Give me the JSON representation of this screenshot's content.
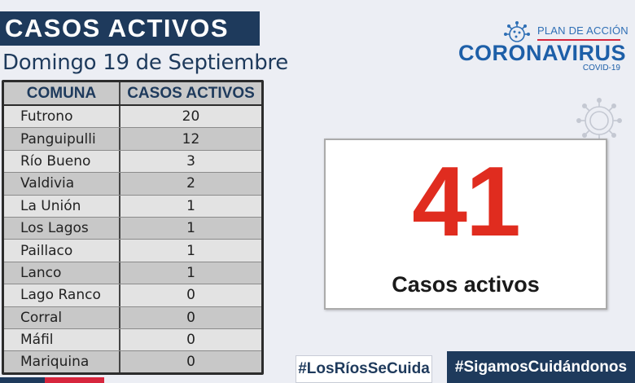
{
  "header": {
    "title": "CASOS ACTIVOS",
    "date": "Domingo 19 de Septiembre"
  },
  "table": {
    "col_comuna": "COMUNA",
    "col_casos": "CASOS ACTIVOS",
    "rows": [
      {
        "comuna": "Futrono",
        "casos": "20"
      },
      {
        "comuna": "Panguipulli",
        "casos": "12"
      },
      {
        "comuna": "Río Bueno",
        "casos": "3"
      },
      {
        "comuna": "Valdivia",
        "casos": "2"
      },
      {
        "comuna": "La Unión",
        "casos": "1"
      },
      {
        "comuna": "Los Lagos",
        "casos": "1"
      },
      {
        "comuna": "Paillaco",
        "casos": "1"
      },
      {
        "comuna": "Lanco",
        "casos": "1"
      },
      {
        "comuna": "Lago Ranco",
        "casos": "0"
      },
      {
        "comuna": "Corral",
        "casos": "0"
      },
      {
        "comuna": "Máfil",
        "casos": "0"
      },
      {
        "comuna": "Mariquina",
        "casos": "0"
      }
    ]
  },
  "logo": {
    "plan": "PLAN DE ACCIÓN",
    "main": "CORONAVIRUS",
    "sub": "COVID-19"
  },
  "total": {
    "value": "41",
    "label": "Casos activos"
  },
  "hashtags": {
    "left": "#LosRíosSeCuida",
    "right": "#SigamosCuidándonos"
  },
  "colors": {
    "navy": "#1e3a5c",
    "red": "#e02c1f",
    "blue": "#1d5fa8"
  }
}
